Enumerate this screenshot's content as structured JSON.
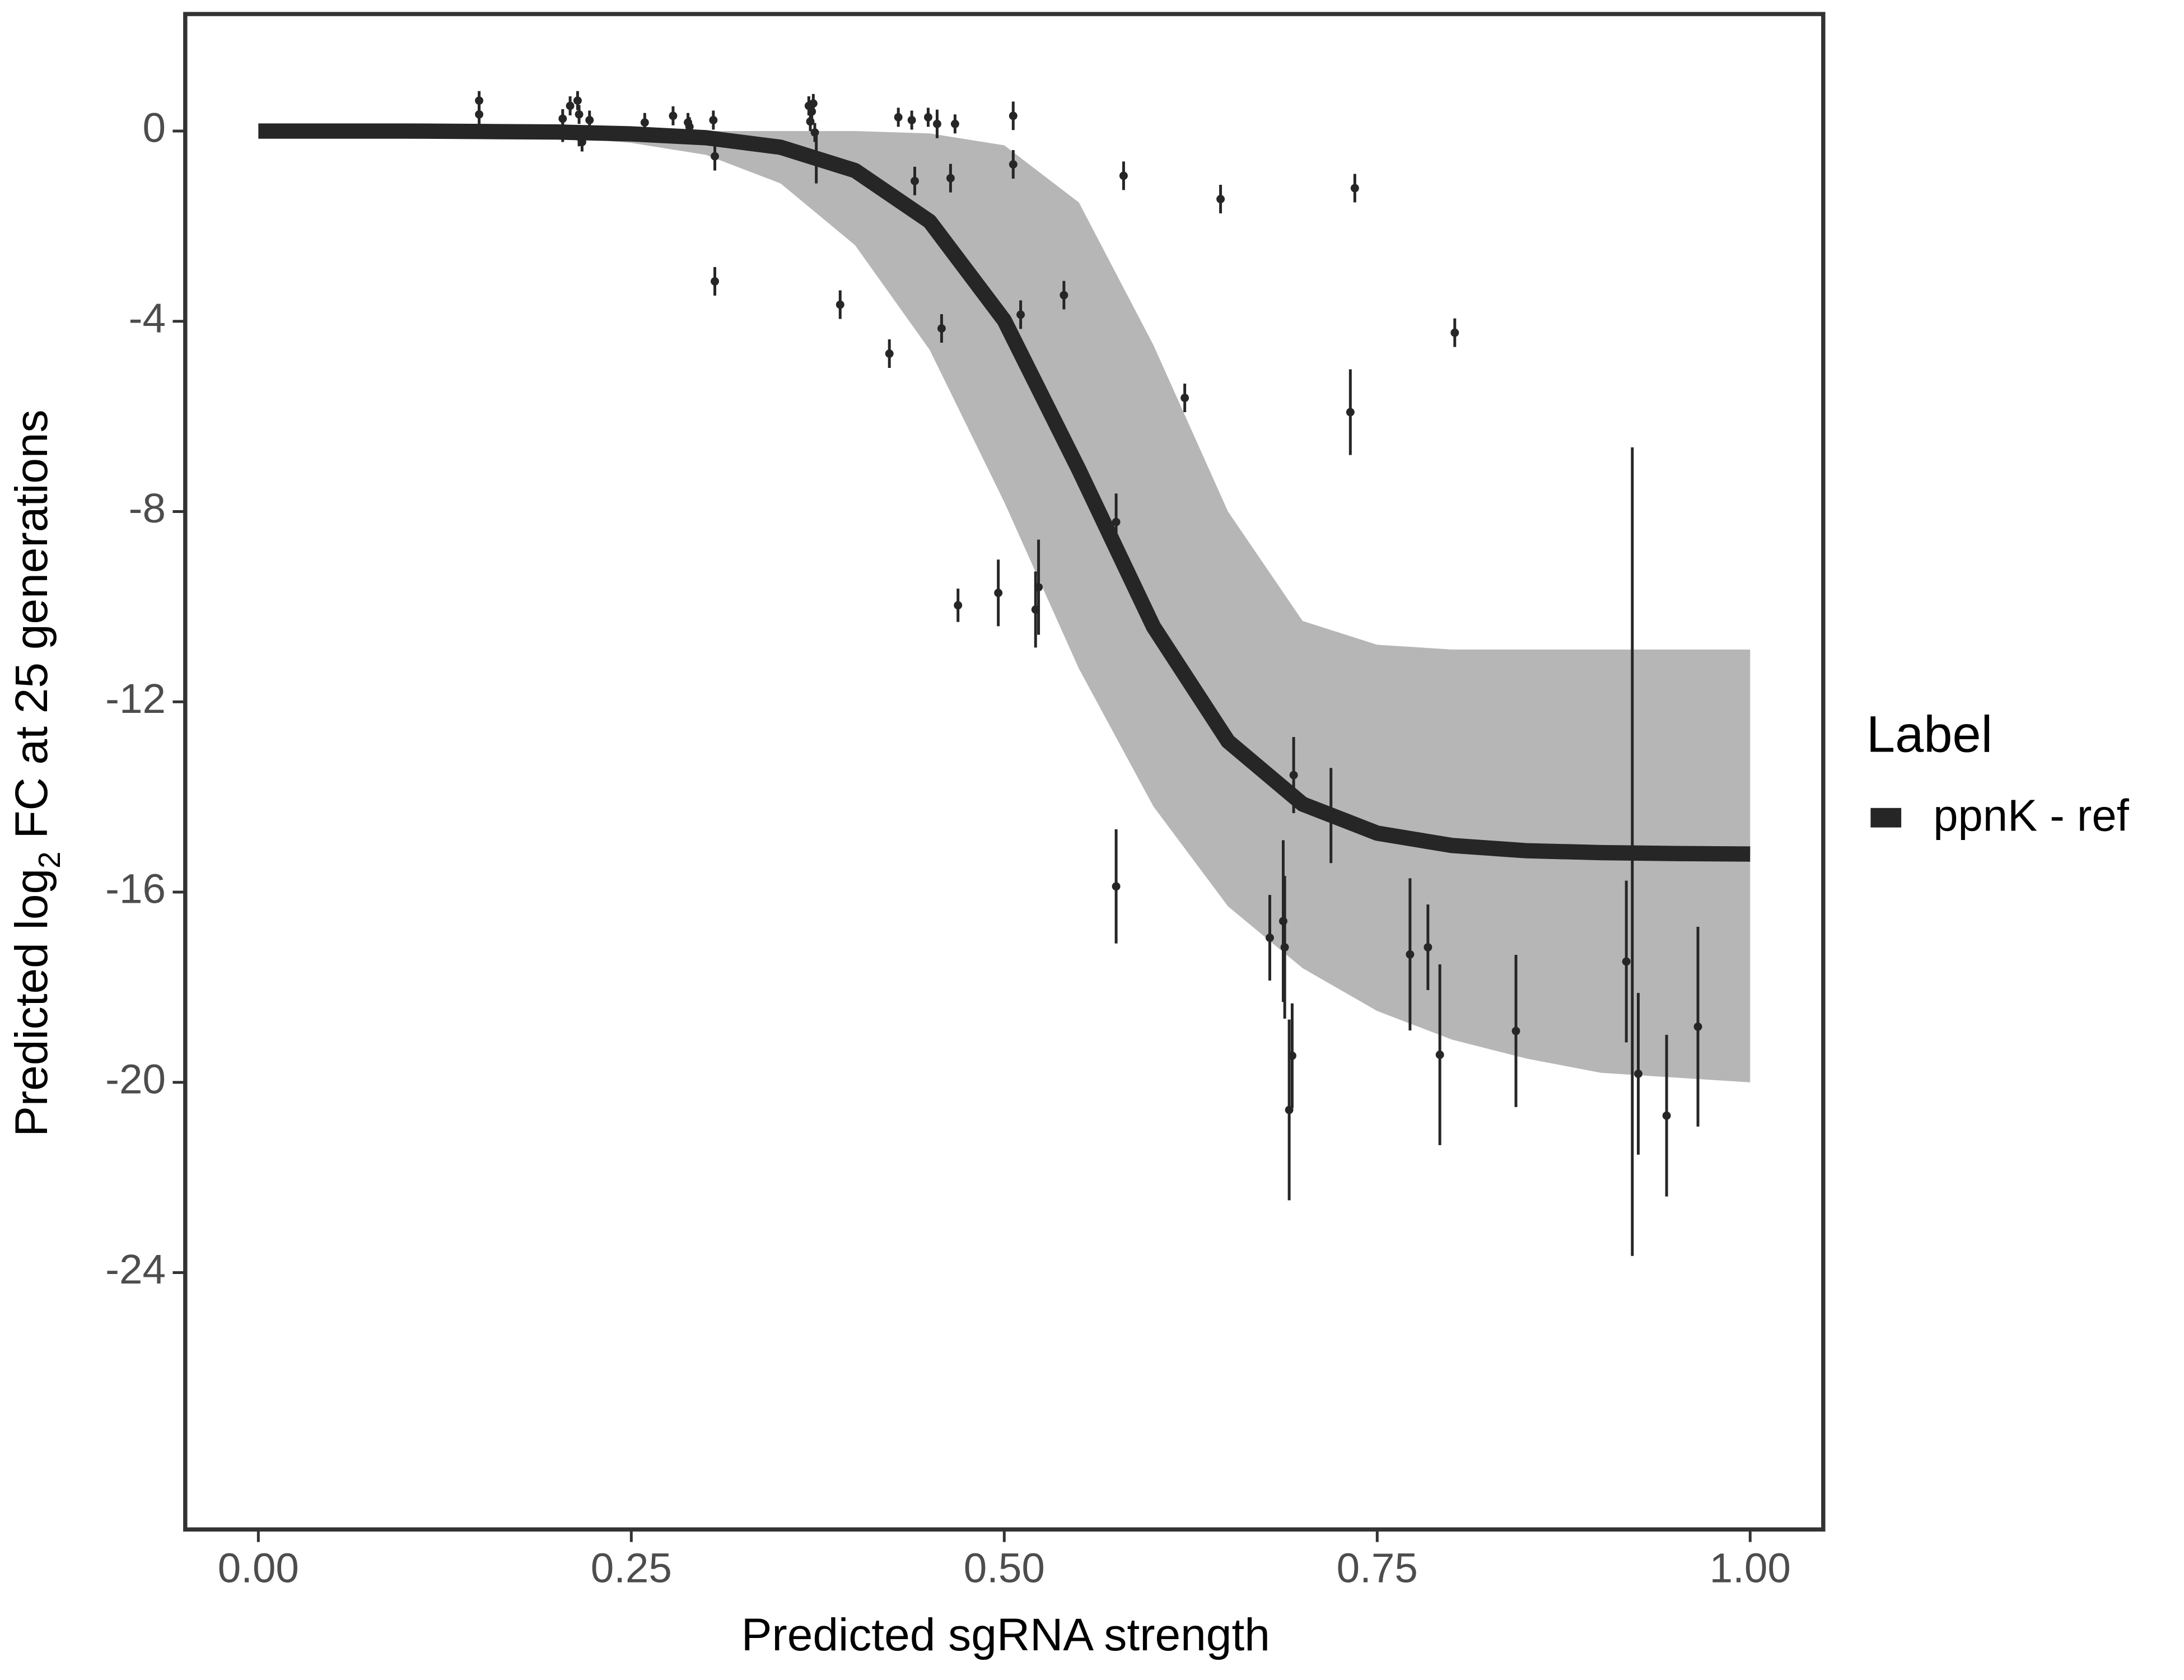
{
  "chart_data": {
    "type": "scatter",
    "x_label": "Predicted sgRNA strength",
    "y_label": [
      "Predicted  log",
      "2",
      " FC at 25 generations"
    ],
    "xlim": [
      -0.049,
      1.049
    ],
    "ylim": [
      -29.4,
      2.46
    ],
    "xticks": [
      {
        "value": 0,
        "label": "0.00"
      },
      {
        "value": 0.25,
        "label": "0.25"
      },
      {
        "value": 0.5,
        "label": "0.50"
      },
      {
        "value": 0.75,
        "label": "0.75"
      },
      {
        "value": 1,
        "label": "1.00"
      }
    ],
    "yticks": [
      0,
      -4,
      -8,
      -12,
      -16,
      -20,
      -24
    ],
    "legend_title": "Label",
    "series": [
      {
        "color": "#262626",
        "x": [
          0.148,
          0.148,
          0.204,
          0.204,
          0.209,
          0.214,
          0.215,
          0.215,
          0.217,
          0.222,
          0.259,
          0.278,
          0.288,
          0.289,
          0.305,
          0.306,
          0.306,
          0.369,
          0.371,
          0.372,
          0.37,
          0.373,
          0.374,
          0.39,
          0.423,
          0.429,
          0.438,
          0.44,
          0.449,
          0.455,
          0.467,
          0.458,
          0.464,
          0.469,
          0.496,
          0.506,
          0.506,
          0.511,
          0.521,
          0.523,
          0.54,
          0.575,
          0.575,
          0.58,
          0.621,
          0.645,
          0.678,
          0.687,
          0.688,
          0.691,
          0.693,
          0.694,
          0.719,
          0.732,
          0.735,
          0.772,
          0.784,
          0.792,
          0.802,
          0.843,
          0.917,
          0.921,
          0.925,
          0.944,
          0.965
        ],
        "values": [
          0.64,
          0.35,
          0.26,
          -0.03,
          0.53,
          0.64,
          0.35,
          -0.12,
          -0.23,
          0.23,
          0.18,
          0.32,
          0.18,
          0.09,
          0.23,
          -0.53,
          -3.16,
          0.53,
          0.41,
          0.58,
          0.2,
          -0.03,
          -0.6,
          -3.65,
          -4.68,
          0.29,
          0.23,
          -1.05,
          0.29,
          0.15,
          0.15,
          -4.15,
          -0.99,
          -9.97,
          -9.71,
          0.32,
          -0.7,
          -3.86,
          -10.06,
          -9.59,
          -3.45,
          -8.22,
          -15.88,
          -0.94,
          -5.61,
          -1.43,
          -16.96,
          -16.61,
          -17.16,
          -20.58,
          -19.44,
          -13.54,
          -14.39,
          -5.91,
          -1.2,
          -17.31,
          -17.16,
          -19.42,
          -4.24,
          -18.92,
          -17.46,
          -15.15,
          -19.82,
          -20.7,
          -18.83
        ],
        "errors": [
          0.2,
          0.2,
          0.2,
          0.2,
          0.2,
          0.2,
          0.2,
          0.2,
          0.2,
          0.2,
          0.2,
          0.2,
          0.2,
          0.2,
          0.2,
          0.3,
          0.3,
          0.2,
          0.2,
          0.2,
          0.2,
          0.2,
          0.5,
          0.3,
          0.3,
          0.2,
          0.2,
          0.3,
          0.2,
          0.3,
          0.2,
          0.3,
          0.3,
          0.35,
          0.7,
          0.3,
          0.3,
          0.3,
          0.8,
          1.0,
          0.3,
          0.6,
          1.2,
          0.3,
          0.3,
          0.3,
          0.9,
          1.7,
          1.5,
          1.9,
          1.1,
          0.8,
          1.0,
          0.9,
          0.3,
          1.6,
          0.9,
          1.9,
          0.3,
          1.6,
          1.7,
          8.5,
          1.7,
          1.7,
          2.1
        ]
      }
    ],
    "fit": {
      "name": "ppnK - ref",
      "color": "#262626",
      "x": [
        0,
        0.05,
        0.1,
        0.15,
        0.2,
        0.25,
        0.3,
        0.35,
        0.4,
        0.45,
        0.5,
        0.55,
        0.6,
        0.65,
        0.7,
        0.75,
        0.8,
        0.85,
        0.9,
        0.95,
        1
      ],
      "values": [
        0,
        0,
        0,
        -0.01,
        -0.02,
        -0.06,
        -0.14,
        -0.34,
        -0.83,
        -1.9,
        -3.98,
        -7.12,
        -10.42,
        -12.83,
        -14.15,
        -14.76,
        -15.02,
        -15.13,
        -15.17,
        -15.19,
        -15.2
      ]
    },
    "band": {
      "color": "#a9a9a9",
      "upper": [
        0,
        0,
        0,
        0,
        0,
        0,
        0,
        0,
        0,
        -0.05,
        -0.3,
        -1.5,
        -4.5,
        -8,
        -10.3,
        -10.8,
        -10.9,
        -10.9,
        -10.9,
        -10.9,
        -10.9
      ],
      "lower": [
        0,
        -0.01,
        -0.03,
        -0.06,
        -0.12,
        -0.25,
        -0.5,
        -1.1,
        -2.4,
        -4.6,
        -7.8,
        -11.3,
        -14.2,
        -16.3,
        -17.6,
        -18.5,
        -19.1,
        -19.5,
        -19.8,
        -19.9,
        -20.0
      ]
    }
  }
}
